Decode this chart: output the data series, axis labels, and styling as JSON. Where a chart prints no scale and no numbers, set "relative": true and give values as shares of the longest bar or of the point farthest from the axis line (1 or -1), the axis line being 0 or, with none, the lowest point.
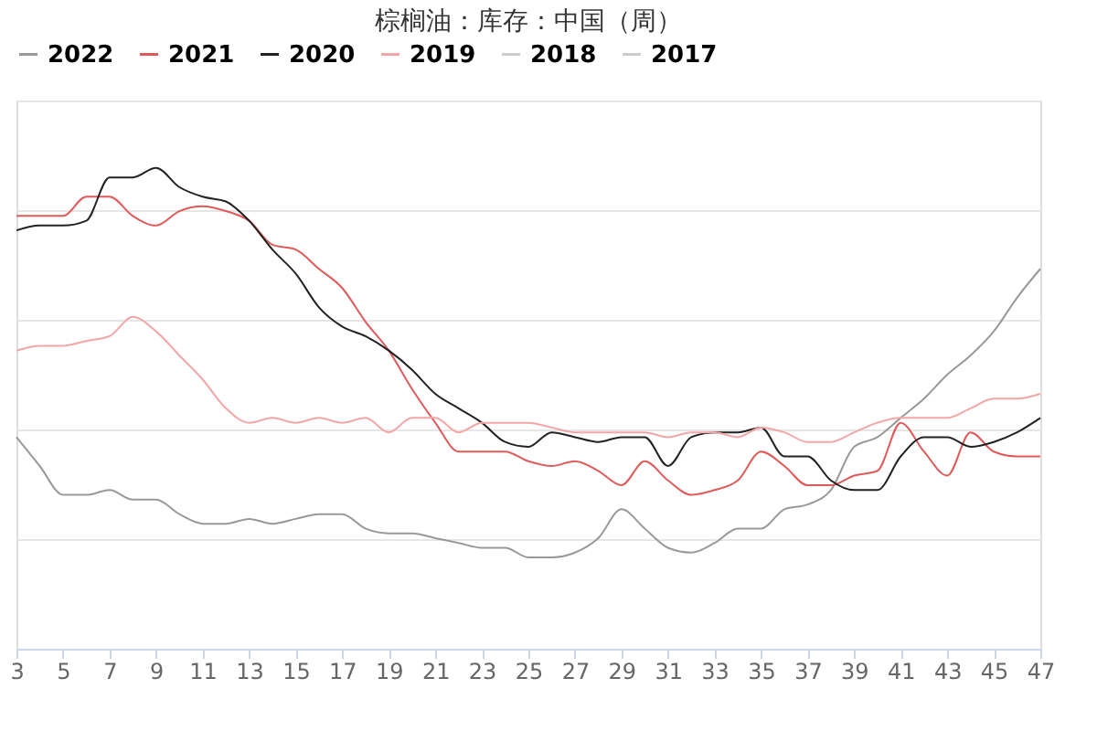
{
  "chart_data": {
    "type": "line",
    "title": "棕榈油：库存：中国（周）",
    "relative": true,
    "grid": "y",
    "legend": "top",
    "tick_labels": "x",
    "x": [
      3,
      4,
      5,
      6,
      7,
      8,
      9,
      10,
      11,
      12,
      13,
      14,
      15,
      16,
      17,
      18,
      19,
      20,
      21,
      22,
      23,
      24,
      25,
      26,
      27,
      28,
      29,
      30,
      31,
      32,
      33,
      34,
      35,
      36,
      37,
      38,
      39,
      40,
      41,
      42,
      43,
      44,
      45,
      46,
      47
    ],
    "xlim": [
      3,
      47
    ],
    "xticks": [
      3,
      5,
      7,
      9,
      11,
      13,
      15,
      17,
      19,
      21,
      23,
      25,
      27,
      29,
      31,
      33,
      35,
      37,
      39,
      41,
      43,
      45,
      47
    ],
    "series": [
      {
        "name": "2022",
        "color": "#999999",
        "values": [
          0.44,
          0.38,
          0.32,
          0.32,
          0.33,
          0.31,
          0.31,
          0.28,
          0.26,
          0.26,
          0.27,
          0.26,
          0.27,
          0.28,
          0.28,
          0.25,
          0.24,
          0.24,
          0.23,
          0.22,
          0.21,
          0.21,
          0.19,
          0.19,
          0.2,
          0.23,
          0.29,
          0.25,
          0.21,
          0.2,
          0.22,
          0.25,
          0.25,
          0.29,
          0.3,
          0.33,
          0.42,
          0.44,
          0.48,
          0.52,
          0.57,
          0.61,
          0.66,
          0.73,
          0.79
        ]
      },
      {
        "name": "2021",
        "color": "#e05a5a",
        "values": [
          0.9,
          0.9,
          0.9,
          0.94,
          0.94,
          0.9,
          0.88,
          0.91,
          0.92,
          0.91,
          0.89,
          0.84,
          0.83,
          0.79,
          0.75,
          0.68,
          0.62,
          0.54,
          0.47,
          0.41,
          0.41,
          0.41,
          0.39,
          0.38,
          0.39,
          0.37,
          0.34,
          0.39,
          0.35,
          0.32,
          0.33,
          0.35,
          0.41,
          0.38,
          0.34,
          0.34,
          0.36,
          0.37,
          0.47,
          0.41,
          0.36,
          0.45,
          0.41,
          0.4,
          0.4
        ]
      },
      {
        "name": "2020",
        "color": "#222222",
        "values": [
          0.87,
          0.88,
          0.88,
          0.89,
          0.98,
          0.98,
          1.0,
          0.96,
          0.94,
          0.93,
          0.89,
          0.83,
          0.78,
          0.71,
          0.67,
          0.65,
          0.62,
          0.58,
          0.53,
          0.5,
          0.47,
          0.43,
          0.42,
          0.45,
          0.44,
          0.43,
          0.44,
          0.44,
          0.38,
          0.44,
          0.45,
          0.45,
          0.46,
          0.4,
          0.4,
          0.35,
          0.33,
          0.33,
          0.4,
          0.44,
          0.44,
          0.42,
          0.43,
          0.45,
          0.48
        ]
      },
      {
        "name": "2019",
        "color": "#f4a6a6",
        "values": [
          0.62,
          0.63,
          0.63,
          0.64,
          0.65,
          0.69,
          0.66,
          0.61,
          0.56,
          0.5,
          0.47,
          0.48,
          0.47,
          0.48,
          0.47,
          0.48,
          0.45,
          0.48,
          0.48,
          0.45,
          0.47,
          0.47,
          0.47,
          0.46,
          0.45,
          0.45,
          0.45,
          0.45,
          0.44,
          0.45,
          0.45,
          0.44,
          0.46,
          0.45,
          0.43,
          0.43,
          0.45,
          0.47,
          0.48,
          0.48,
          0.48,
          0.5,
          0.52,
          0.52,
          0.53
        ]
      },
      {
        "name": "2018",
        "color": "#cccccc",
        "values": [
          null,
          null,
          null,
          null,
          null,
          null,
          null,
          null,
          null,
          null,
          null,
          null,
          null,
          null,
          null,
          null,
          null,
          null,
          null,
          null,
          null,
          null,
          null,
          null,
          null,
          null,
          null,
          null,
          null,
          null,
          null,
          null,
          null,
          null,
          null,
          null,
          null,
          null,
          null,
          null,
          null,
          null,
          null,
          null,
          null
        ]
      },
      {
        "name": "2017",
        "color": "#cccccc",
        "values": [
          null,
          null,
          null,
          null,
          null,
          null,
          null,
          null,
          null,
          null,
          null,
          null,
          null,
          null,
          null,
          null,
          null,
          null,
          null,
          null,
          null,
          null,
          null,
          null,
          null,
          null,
          null,
          null,
          null,
          null,
          null,
          null,
          null,
          null,
          null,
          null,
          null,
          null,
          null,
          null,
          null,
          null,
          null,
          null,
          null
        ]
      }
    ]
  }
}
